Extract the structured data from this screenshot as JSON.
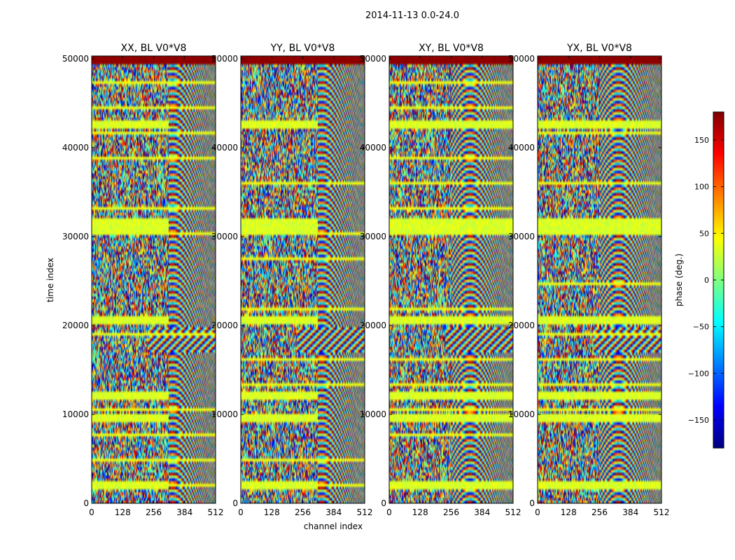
{
  "figure": {
    "suptitle": "2014-11-13 0.0-24.0"
  },
  "chart_data": {
    "type": "heatmap",
    "colormap": "jet",
    "panels": [
      {
        "title": "XX, BL V0*V8"
      },
      {
        "title": "YY, BL V0*V8"
      },
      {
        "title": "XY, BL V0*V8"
      },
      {
        "title": "YX, BL V0*V8"
      }
    ],
    "x": {
      "label": "channel index",
      "range": [
        0,
        512
      ],
      "ticks": [
        0,
        128,
        256,
        384,
        512
      ]
    },
    "y": {
      "label": "time index",
      "range": [
        0,
        50300
      ],
      "ticks": [
        0,
        10000,
        20000,
        30000,
        40000,
        50000
      ]
    },
    "colorbar": {
      "label": "phase (deg.)",
      "range": [
        -180,
        180
      ],
      "ticks": [
        -150,
        -100,
        -50,
        0,
        50,
        100,
        150
      ]
    },
    "flagged_rows": [
      2300,
      9600,
      12200,
      20900,
      30800,
      31900,
      42600
    ],
    "fringe_band": [
      17200,
      19700
    ],
    "top_band_start": 49500
  }
}
